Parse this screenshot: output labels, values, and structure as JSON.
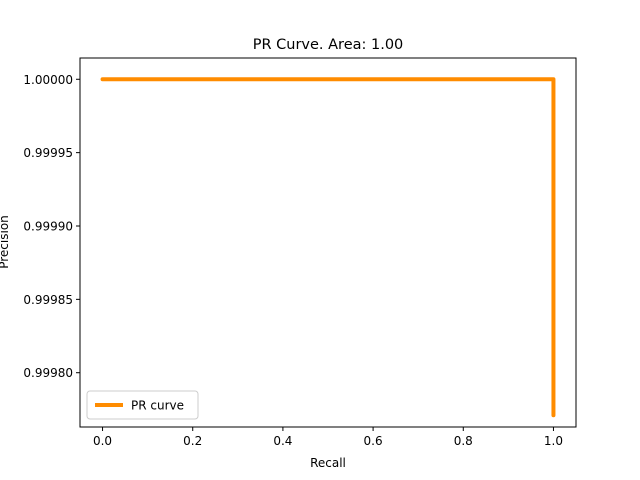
{
  "chart_data": {
    "type": "line",
    "title": "PR Curve. Area: 1.00",
    "xlabel": "Recall",
    "ylabel": "Precision",
    "xlim": [
      -0.05,
      1.05
    ],
    "ylim": [
      0.999763,
      1.0000145
    ],
    "xticks": [
      0.0,
      0.2,
      0.4,
      0.6,
      0.8,
      1.0
    ],
    "xtick_labels": [
      "0.0",
      "0.2",
      "0.4",
      "0.6",
      "0.8",
      "1.0"
    ],
    "yticks": [
      0.9998,
      0.99985,
      0.9999,
      0.99995,
      1.0
    ],
    "ytick_labels": [
      "0.99980",
      "0.99985",
      "0.99990",
      "0.99995",
      "1.00000"
    ],
    "grid": false,
    "legend_position": "lower-left",
    "series": [
      {
        "name": "PR curve",
        "color": "#ff8c00",
        "x": [
          0.0,
          1.0,
          1.0
        ],
        "y": [
          1.0,
          1.0,
          0.999771
        ]
      }
    ]
  }
}
